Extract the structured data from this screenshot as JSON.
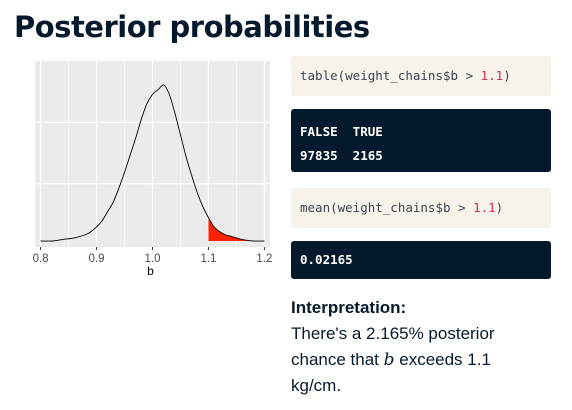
{
  "slide": {
    "title": "Posterior probabilities"
  },
  "code1": {
    "prefix": "table(weight_chains$b > ",
    "number": "1.1",
    "suffix": ")"
  },
  "output1": {
    "headers": "FALSE  TRUE",
    "values": "97835  2165"
  },
  "code2": {
    "prefix": "mean(weight_chains$b > ",
    "number": "1.1",
    "suffix": ")"
  },
  "output2": {
    "value": "0.02165"
  },
  "interpretation": {
    "heading": "Interpretation:",
    "line1": "There's a 2.165% posterior",
    "line2_pre": "chance that ",
    "var": "b",
    "line2_post": " exceeds 1.1",
    "line3": "kg/cm."
  },
  "chart_data": {
    "type": "area",
    "title": "",
    "xlabel": "b",
    "ylabel": "",
    "xlim": [
      0.79,
      1.21
    ],
    "ylim": [
      0,
      1.0
    ],
    "xticks": [
      "0.8",
      "0.9",
      "1.0",
      "1.1",
      "1.2"
    ],
    "grid": true,
    "threshold": 1.1,
    "colors": {
      "panel": "#ebebeb",
      "grid": "#ffffff",
      "line": "#000000",
      "shade": "#ff2200"
    },
    "x": [
      0.8,
      0.82,
      0.84,
      0.86,
      0.88,
      0.89,
      0.9,
      0.91,
      0.92,
      0.93,
      0.94,
      0.95,
      0.96,
      0.97,
      0.98,
      0.99,
      1.0,
      1.01,
      1.02,
      1.03,
      1.04,
      1.05,
      1.06,
      1.07,
      1.08,
      1.09,
      1.1,
      1.11,
      1.12,
      1.13,
      1.14,
      1.15,
      1.16,
      1.18,
      1.2
    ],
    "y": [
      0.0,
      0.0,
      0.01,
      0.02,
      0.04,
      0.06,
      0.09,
      0.13,
      0.19,
      0.25,
      0.34,
      0.44,
      0.55,
      0.66,
      0.78,
      0.88,
      0.94,
      0.97,
      1.0,
      0.94,
      0.82,
      0.68,
      0.54,
      0.42,
      0.31,
      0.22,
      0.15,
      0.09,
      0.06,
      0.04,
      0.03,
      0.02,
      0.01,
      0.0,
      0.0
    ]
  }
}
